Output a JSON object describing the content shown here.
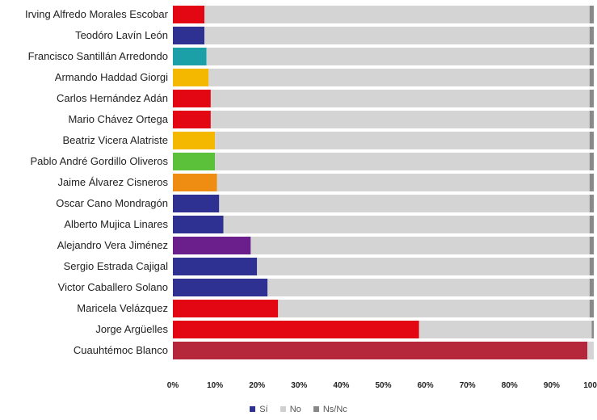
{
  "chart_data": {
    "type": "bar",
    "orientation": "horizontal",
    "stacked": true,
    "categories": [
      "Irving Alfredo Morales Escobar",
      "Teodóro Lavín León",
      "Francisco Santillán Arredondo",
      "Armando Haddad Giorgi",
      "Carlos Hernández Adán",
      "Mario Chávez Ortega",
      "Beatriz Vicera Alatriste",
      "Pablo André Gordillo Oliveros",
      "Jaime Álvarez Cisneros",
      "Oscar Cano Mondragón",
      "Alberto Mujica Linares",
      "Alejandro Vera Jiménez",
      "Sergio Estrada Cajigal",
      "Victor Caballero Solano",
      "Maricela Velázquez",
      "Jorge Argüelles",
      "Cuauhtémoc Blanco"
    ],
    "series": [
      {
        "name": "Sí",
        "values": [
          7.5,
          7.5,
          8,
          8.5,
          9,
          9,
          10,
          10,
          10.5,
          11,
          12,
          18.5,
          20,
          22.5,
          25,
          58.5,
          98.5
        ]
      },
      {
        "name": "No",
        "values": [
          91.5,
          91.5,
          91,
          90.5,
          90,
          90,
          89,
          89,
          88.5,
          88,
          87,
          80.5,
          79,
          76.5,
          74,
          41,
          1.5
        ]
      },
      {
        "name": "Ns/Nc",
        "values": [
          1,
          1,
          1,
          1,
          1,
          1,
          1,
          1,
          1,
          1,
          1,
          1,
          1,
          1,
          1,
          0.5,
          0
        ]
      }
    ],
    "bar_colors": [
      "#e30613",
      "#2e3192",
      "#1aa0a6",
      "#f5b800",
      "#e30613",
      "#e30613",
      "#f5b800",
      "#5cc13a",
      "#ef8c12",
      "#2e3192",
      "#2e3192",
      "#6a1f8c",
      "#2e3192",
      "#2e3192",
      "#e30613",
      "#e30613",
      "#b5283b"
    ],
    "x_ticks": [
      "0%",
      "10%",
      "20%",
      "30%",
      "40%",
      "50%",
      "60%",
      "70%",
      "80%",
      "90%",
      "100%"
    ],
    "xlim": [
      0,
      100
    ],
    "legend": [
      {
        "label": "Sí",
        "color": "#2e3192"
      },
      {
        "label": "No",
        "color": "#d0d0d0"
      },
      {
        "label": "Ns/Nc",
        "color": "#888888"
      }
    ],
    "legend_position": "bottom",
    "no_color": "#d4d4d4",
    "nsnc_color": "#8a8a8a",
    "grid": false
  }
}
